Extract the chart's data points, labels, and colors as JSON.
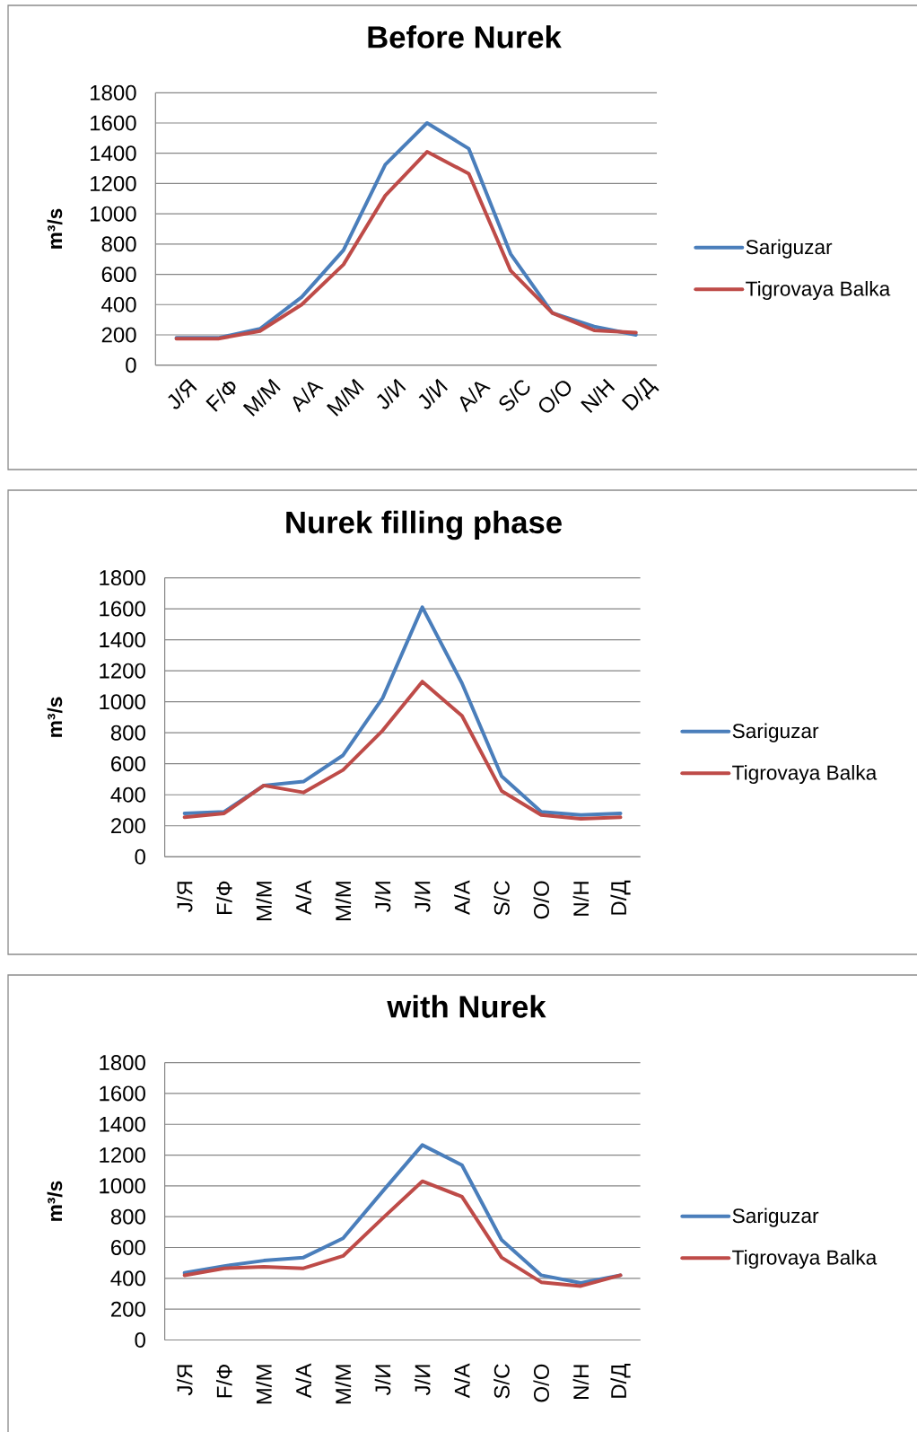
{
  "chart_data": [
    {
      "type": "line",
      "title": "Before Nurek",
      "ylabel": "m³/s",
      "categories": [
        "J/Я",
        "F/Ф",
        "M/М",
        "A/А",
        "M/М",
        "J/И",
        "J/И",
        "A/А",
        "S/С",
        "O/О",
        "N/Н",
        "D/Д"
      ],
      "series": [
        {
          "name": "Sariguzar",
          "color": "#4a7ebb",
          "values": [
            180,
            180,
            240,
            450,
            760,
            1325,
            1600,
            1430,
            735,
            345,
            255,
            200
          ]
        },
        {
          "name": "Tigrovaya Balka",
          "color": "#be4b48",
          "values": [
            175,
            175,
            225,
            400,
            665,
            1120,
            1410,
            1265,
            625,
            345,
            230,
            215
          ]
        }
      ],
      "ylim": [
        0,
        1800
      ],
      "yticks": [
        0,
        200,
        400,
        600,
        800,
        1000,
        1200,
        1400,
        1600,
        1800
      ],
      "grid": "y",
      "legend": "right"
    },
    {
      "type": "line",
      "title": "Nurek filling phase",
      "ylabel": "m³/s",
      "categories": [
        "J/Я",
        "F/Ф",
        "M/М",
        "A/А",
        "M/М",
        "J/И",
        "J/И",
        "A/А",
        "S/С",
        "O/О",
        "N/Н",
        "D/Д"
      ],
      "series": [
        {
          "name": "Sariguzar",
          "color": "#4a7ebb",
          "values": [
            280,
            290,
            460,
            485,
            655,
            1025,
            1610,
            1120,
            520,
            290,
            270,
            280
          ]
        },
        {
          "name": "Tigrovaya Balka",
          "color": "#be4b48",
          "values": [
            255,
            280,
            460,
            415,
            560,
            815,
            1130,
            910,
            425,
            270,
            245,
            255
          ]
        }
      ],
      "ylim": [
        0,
        1800
      ],
      "yticks": [
        0,
        200,
        400,
        600,
        800,
        1000,
        1200,
        1400,
        1600,
        1800
      ],
      "grid": "y",
      "legend": "right"
    },
    {
      "type": "line",
      "title": "with Nurek",
      "ylabel": "m³/s",
      "categories": [
        "J/Я",
        "F/Ф",
        "M/М",
        "A/А",
        "M/М",
        "J/И",
        "J/И",
        "A/А",
        "S/С",
        "O/О",
        "N/Н",
        "D/Д"
      ],
      "series": [
        {
          "name": "Sariguzar",
          "color": "#4a7ebb",
          "values": [
            435,
            480,
            515,
            535,
            660,
            965,
            1265,
            1135,
            650,
            420,
            370,
            420
          ]
        },
        {
          "name": "Tigrovaya Balka",
          "color": "#be4b48",
          "values": [
            420,
            465,
            475,
            465,
            545,
            790,
            1030,
            930,
            535,
            375,
            350,
            420
          ]
        }
      ],
      "ylim": [
        0,
        1800
      ],
      "yticks": [
        0,
        200,
        400,
        600,
        800,
        1000,
        1200,
        1400,
        1600,
        1800
      ],
      "grid": "y",
      "legend": "right"
    }
  ]
}
